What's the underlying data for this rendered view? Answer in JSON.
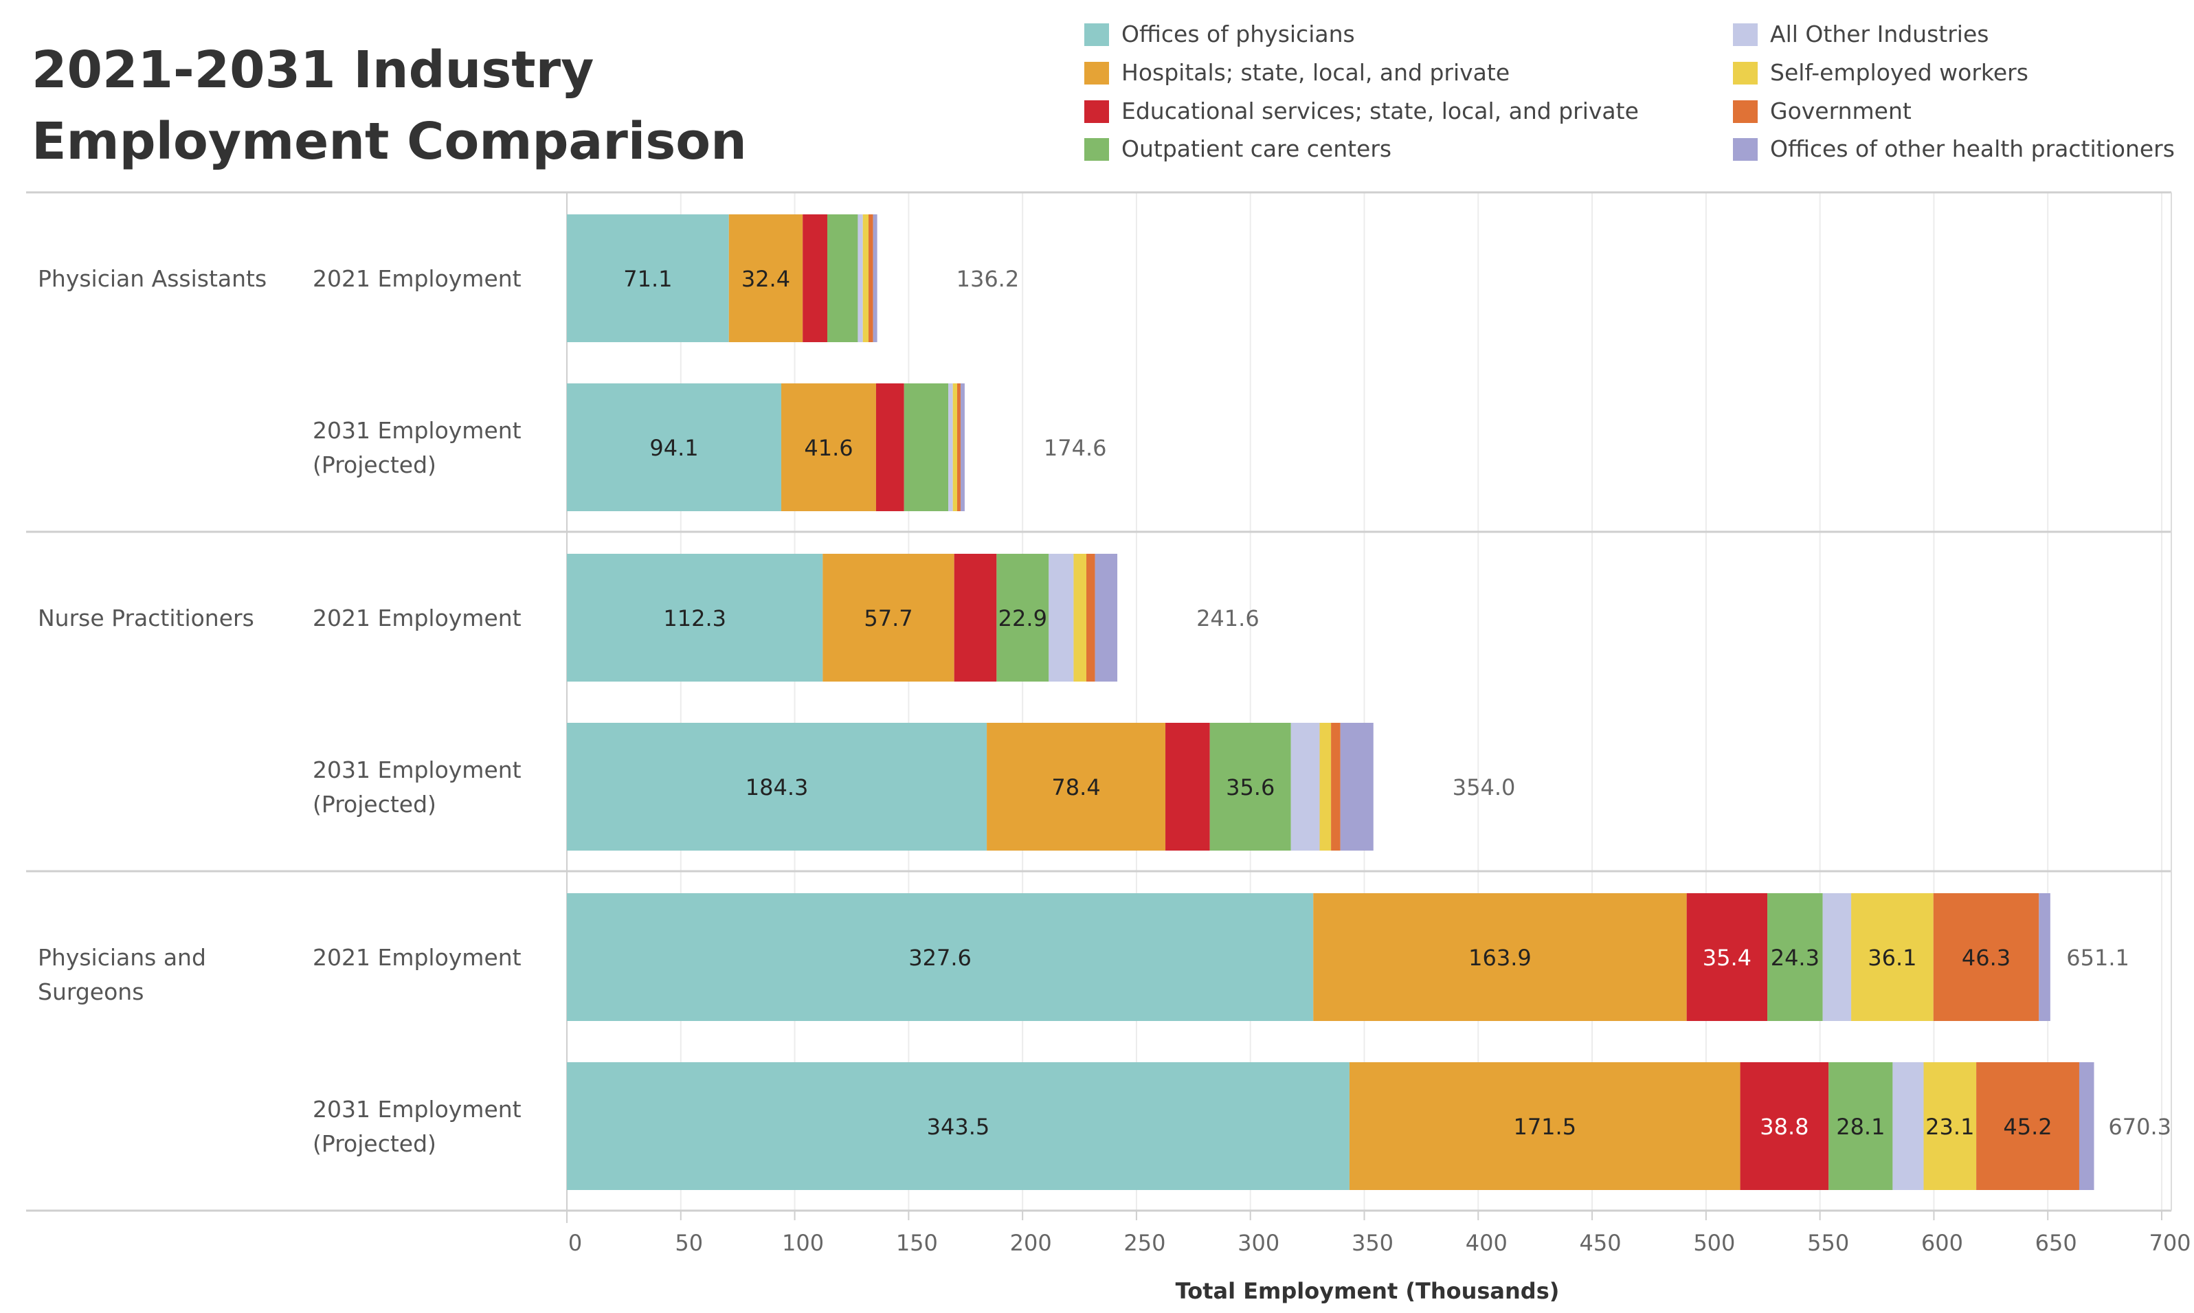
{
  "title": {
    "line1": "2021-2031 Industry",
    "line2": "Employment Comparison"
  },
  "legend": [
    {
      "name": "Offices of physicians",
      "color": "#8ECAC8"
    },
    {
      "name": "Hospitals; state, local, and private",
      "color": "#E5A336"
    },
    {
      "name": "Educational services; state, local, and private",
      "color": "#CF2530"
    },
    {
      "name": "Outpatient care centers",
      "color": "#82BA6A"
    },
    {
      "name": "All Other Industries",
      "color": "#C3C8E6"
    },
    {
      "name": "Self-employed workers",
      "color": "#ECD04B"
    },
    {
      "name": "Government",
      "color": "#E07236"
    },
    {
      "name": "Offices of other health practitioners",
      "color": "#A3A2D2"
    }
  ],
  "chart_data": {
    "type": "bar",
    "orientation": "horizontal",
    "stacked": true,
    "title": "2021-2031 Industry Employment Comparison",
    "xlabel": "Total Employment (Thousands)",
    "xlim": [
      0,
      700
    ],
    "xticks": [
      0,
      50,
      100,
      150,
      200,
      250,
      300,
      350,
      400,
      450,
      500,
      550,
      600,
      650,
      700
    ],
    "series_order": [
      "Offices of physicians",
      "Hospitals; state, local, and private",
      "Educational services; state, local, and private",
      "Outpatient care centers",
      "All Other Industries",
      "Self-employed workers",
      "Government",
      "Offices of other health practitioners"
    ],
    "groups": [
      {
        "name": "Physician Assistants",
        "rows": [
          {
            "label": [
              "2021 Employment"
            ],
            "total": 136.2,
            "total_label": "136.2",
            "values": [
              71.1,
              32.4,
              10.8,
              13.4,
              2.2,
              2.5,
              2.0,
              1.8
            ],
            "labels": [
              "71.1",
              "32.4",
              "",
              "",
              "",
              "",
              "",
              ""
            ]
          },
          {
            "label": [
              "2031 Employment",
              "(Projected)"
            ],
            "total": 174.6,
            "total_label": "174.6",
            "values": [
              94.1,
              41.6,
              12.3,
              19.4,
              2.0,
              1.9,
              1.5,
              1.8
            ],
            "labels": [
              "94.1",
              "41.6",
              "",
              "",
              "",
              "",
              "",
              ""
            ]
          }
        ]
      },
      {
        "name": "Nurse Practitioners",
        "rows": [
          {
            "label": [
              "2021 Employment"
            ],
            "total": 241.6,
            "total_label": "241.6",
            "values": [
              112.3,
              57.7,
              18.6,
              22.9,
              10.9,
              5.6,
              3.8,
              9.8
            ],
            "labels": [
              "112.3",
              "57.7",
              "",
              "22.9",
              "",
              "",
              "",
              ""
            ]
          },
          {
            "label": [
              "2031 Employment",
              "(Projected)"
            ],
            "total": 354.0,
            "total_label": "354.0",
            "values": [
              184.3,
              78.4,
              19.5,
              35.6,
              12.6,
              5.0,
              4.1,
              14.5
            ],
            "labels": [
              "184.3",
              "78.4",
              "",
              "35.6",
              "",
              "",
              "",
              ""
            ]
          }
        ]
      },
      {
        "name": "Physicians and Surgeons",
        "rows": [
          {
            "label": [
              "2021 Employment"
            ],
            "total": 651.1,
            "total_label": "651.1",
            "values": [
              327.6,
              163.9,
              35.4,
              24.3,
              12.5,
              36.1,
              46.3,
              5.0
            ],
            "labels": [
              "327.6",
              "163.9",
              "35.4",
              "24.3",
              "",
              "36.1",
              "46.3",
              ""
            ]
          },
          {
            "label": [
              "2031 Employment",
              "(Projected)"
            ],
            "total": 670.3,
            "total_label": "670.3",
            "values": [
              343.5,
              171.5,
              38.8,
              28.1,
              13.6,
              23.1,
              45.2,
              6.5
            ],
            "labels": [
              "343.5",
              "171.5",
              "38.8",
              "28.1",
              "",
              "23.1",
              "45.2",
              ""
            ]
          }
        ]
      }
    ]
  }
}
